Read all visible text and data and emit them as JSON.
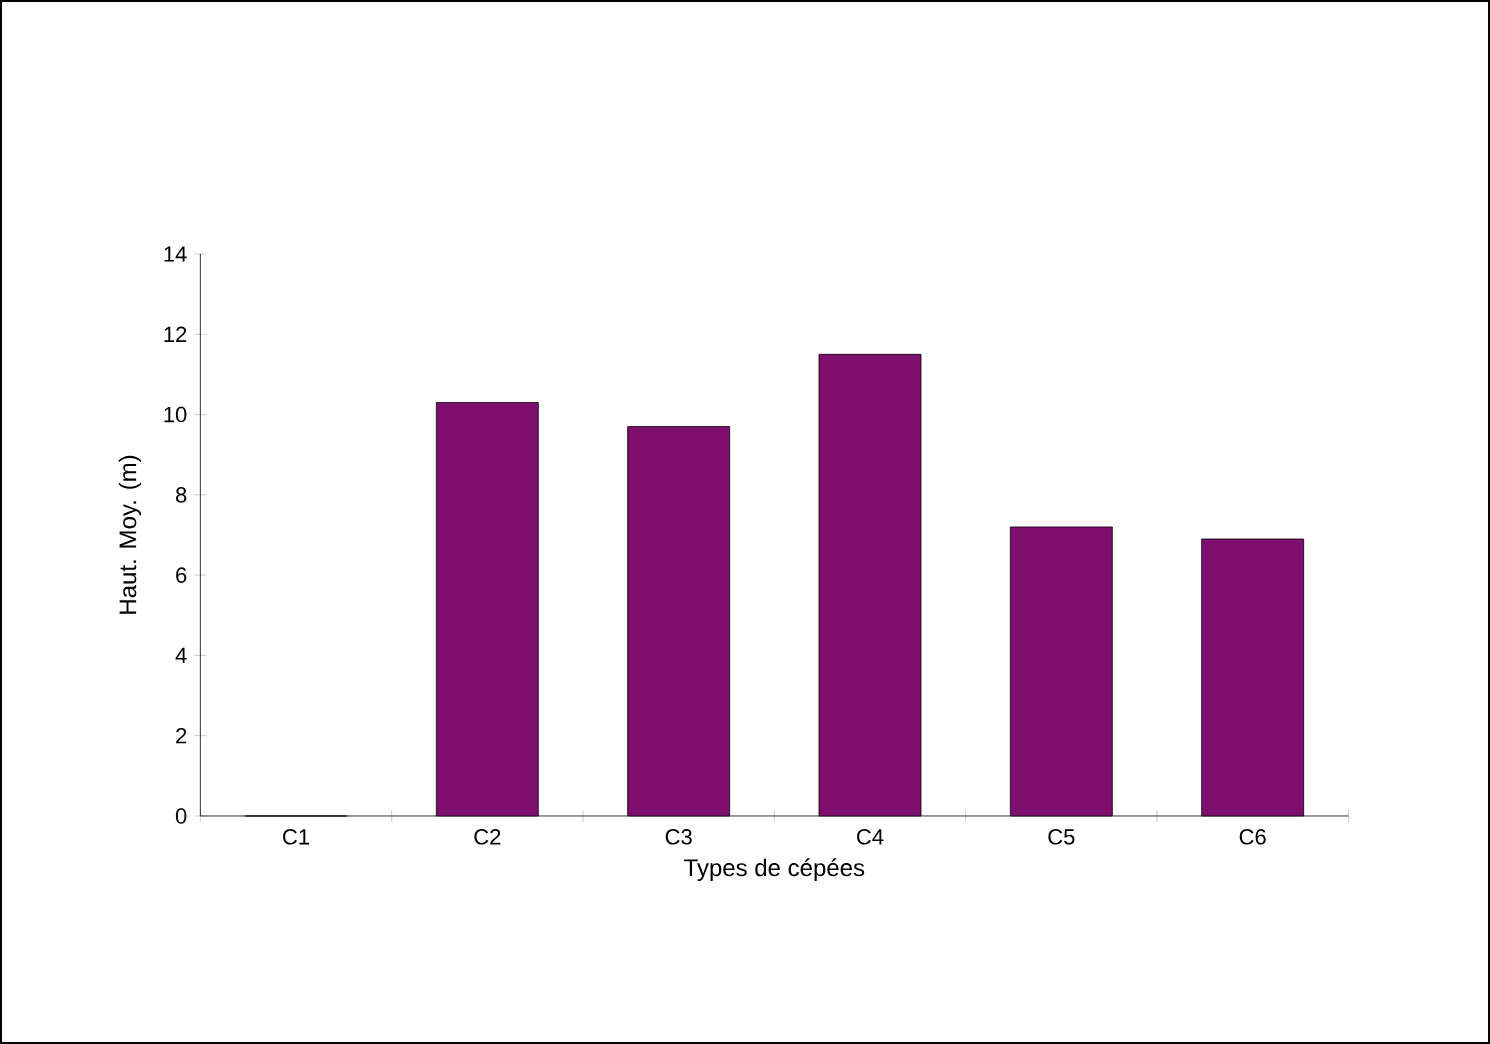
{
  "chart_data": {
    "type": "bar",
    "xlabel": "Types de cépées",
    "ylabel": "Haut. Moy. (m)",
    "categories": [
      "C1",
      "C2",
      "C3",
      "C4",
      "C5",
      "C6"
    ],
    "values": [
      0,
      10.3,
      9.7,
      11.5,
      7.2,
      6.9
    ],
    "color": "#7f0f6e",
    "ylim": [
      0,
      14
    ],
    "yticks": [
      0,
      2,
      4,
      6,
      8,
      10,
      12,
      14
    ]
  }
}
